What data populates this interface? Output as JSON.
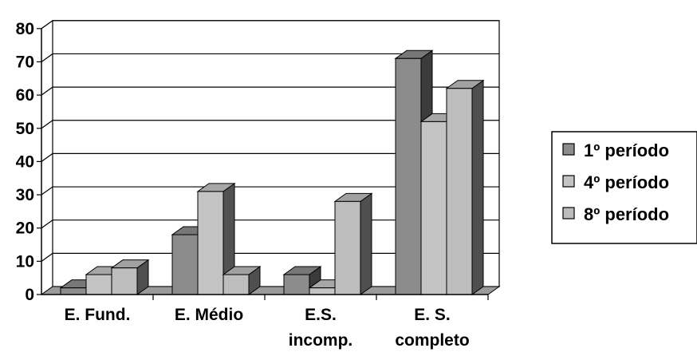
{
  "chart_data": {
    "type": "bar",
    "style": "3d-clustered-column",
    "title": "",
    "xlabel": "",
    "ylabel": "",
    "categories": [
      [
        "E. Fund."
      ],
      [
        "E. Médio"
      ],
      [
        "E.S.",
        "incomp."
      ],
      [
        "E. S.",
        "completo"
      ]
    ],
    "series": [
      {
        "name": "1º período",
        "values": [
          2,
          18,
          6,
          71
        ],
        "color": "#8c8c8c"
      },
      {
        "name": "4º período",
        "values": [
          6,
          31,
          2,
          52
        ],
        "color": "#c4c4c4"
      },
      {
        "name": "8º período",
        "values": [
          8,
          6,
          28,
          62
        ],
        "color": "#bdbdbd"
      }
    ],
    "ylim": [
      0,
      80
    ],
    "yticks": [
      "0",
      "10",
      "20",
      "30",
      "40",
      "50",
      "60",
      "70",
      "80"
    ],
    "grid": true,
    "legend": "right"
  }
}
